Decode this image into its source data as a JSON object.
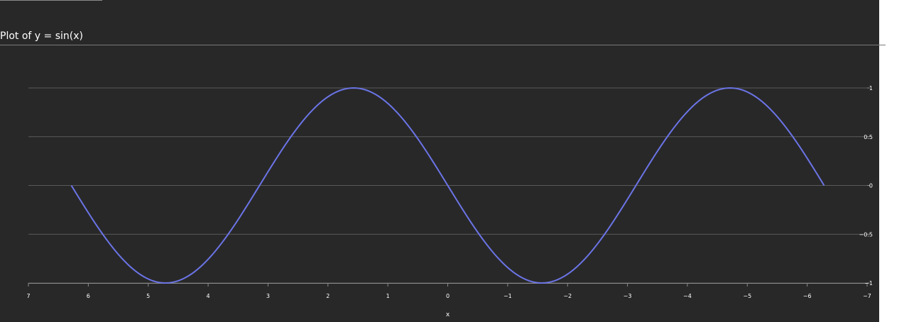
{
  "page": {
    "title": "Plot of y = sin(x)"
  },
  "colors": {
    "background": "#282828",
    "line": "#6b74e6",
    "grid": "#5a5a5a",
    "text": "#ffffff"
  },
  "chart_data": {
    "type": "line",
    "title": "Plot of y = sin(x)",
    "xlabel": "x",
    "ylabel": "",
    "xlim": [
      7,
      -7
    ],
    "ylim": [
      -1,
      1
    ],
    "x_reversed": true,
    "x_ticks": [
      7,
      6,
      5,
      4,
      3,
      2,
      1,
      0,
      -1,
      -2,
      -3,
      -4,
      -5,
      -6,
      -7
    ],
    "y_ticks": [
      1,
      0.5,
      0,
      -0.5,
      -1
    ],
    "y_axis_side": "right",
    "grid": {
      "horizontal": true,
      "vertical": false
    },
    "series": [
      {
        "x": [
          6.2832,
          5.8643,
          5.4454,
          5.0265,
          4.6077,
          4.1888,
          3.7699,
          3.351,
          2.9322,
          2.5133,
          2.0944,
          1.6755,
          1.2566,
          0.8378,
          0.4189,
          0,
          -0.4189,
          -0.8378,
          -1.2566,
          -1.6755,
          -2.0944,
          -2.5133,
          -2.9322,
          -3.351,
          -3.7699,
          -4.1888,
          -4.6077,
          -5.0265,
          -5.4454,
          -5.8643,
          -6.2832
        ],
        "y": [
          0,
          -0.4067,
          -0.7431,
          -0.9511,
          -0.9945,
          -0.866,
          -0.5878,
          -0.2079,
          0.2079,
          0.5878,
          0.866,
          0.9945,
          0.9511,
          0.7431,
          0.4067,
          0,
          -0.4067,
          -0.7431,
          -0.9511,
          -0.9945,
          -0.866,
          -0.5878,
          -0.2079,
          0.2079,
          0.5878,
          0.866,
          0.9945,
          0.9511,
          0.7431,
          0.4067,
          0
        ]
      }
    ]
  }
}
